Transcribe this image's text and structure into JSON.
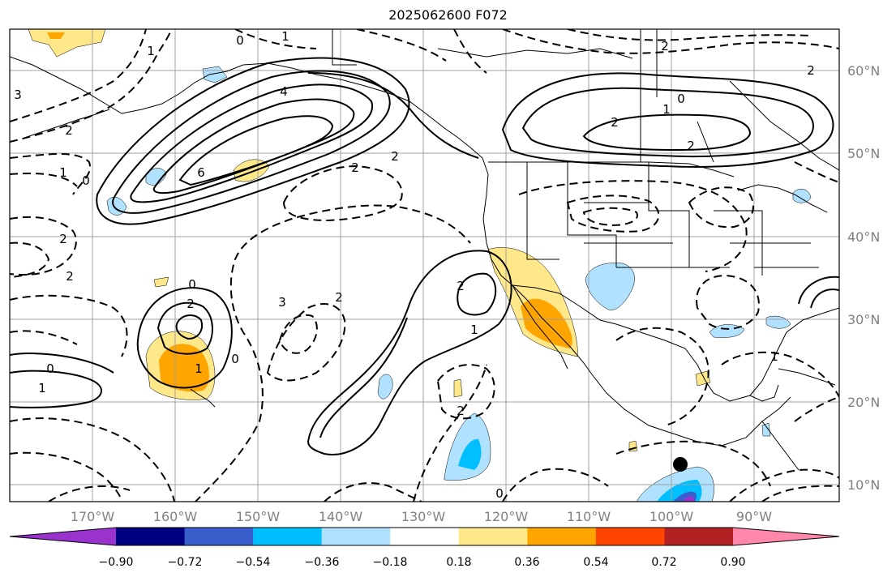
{
  "title": "2025062600 F072",
  "longitude_labels": [
    "170°W",
    "160°W",
    "150°W",
    "140°W",
    "130°W",
    "120°W",
    "110°W",
    "100°W",
    "90°W"
  ],
  "latitude_labels": [
    "60°N",
    "50°N",
    "40°N",
    "30°N",
    "20°N",
    "10°N"
  ],
  "colorbar": {
    "tick_labels": [
      "−0.90",
      "−0.72",
      "−0.54",
      "−0.36",
      "−0.18",
      "0.18",
      "0.36",
      "0.54",
      "0.72",
      "0.90"
    ],
    "colors": [
      "#9a32cd",
      "#000080",
      "#3a5fcd",
      "#00bfff",
      "#b0e2ff",
      "#ffffff",
      "#ffe88a",
      "#ffa500",
      "#ff4500",
      "#b22222",
      "#ff88aa"
    ]
  },
  "contour_labels": [
    "0",
    "1",
    "2",
    "3",
    "4",
    "6",
    "2",
    "1",
    "0",
    "2",
    "2",
    "1",
    "0",
    "2",
    "1",
    "0",
    "2",
    "2",
    "1",
    "3",
    "2",
    "0",
    "2",
    "2",
    "1",
    "2",
    "0",
    "1",
    "2",
    "1",
    "0",
    "2"
  ],
  "marker": {
    "name": "black-dot",
    "lon": -100,
    "lat": 12.5
  }
}
